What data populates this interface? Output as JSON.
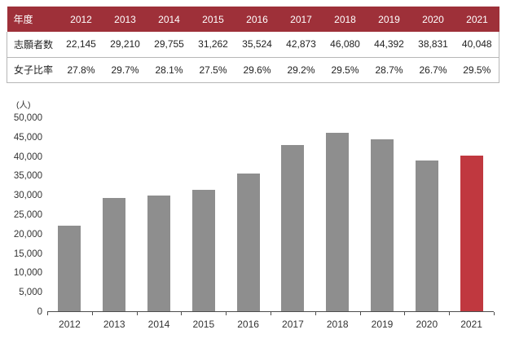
{
  "table": {
    "header": {
      "label": "年度",
      "years": [
        "2012",
        "2013",
        "2014",
        "2015",
        "2016",
        "2017",
        "2018",
        "2019",
        "2020",
        "2021"
      ]
    },
    "rows": [
      {
        "label": "志願者数",
        "values": [
          "22,145",
          "29,210",
          "29,755",
          "31,262",
          "35,524",
          "42,873",
          "46,080",
          "44,392",
          "38,831",
          "40,048"
        ]
      },
      {
        "label": "女子比率",
        "values": [
          "27.8%",
          "29.7%",
          "28.1%",
          "27.5%",
          "29.6%",
          "29.2%",
          "29.5%",
          "28.7%",
          "26.7%",
          "29.5%"
        ]
      }
    ]
  },
  "chart_data": {
    "type": "bar",
    "title": "",
    "unit_label": "(人)",
    "categories": [
      "2012",
      "2013",
      "2014",
      "2015",
      "2016",
      "2017",
      "2018",
      "2019",
      "2020",
      "2021"
    ],
    "values": [
      22145,
      29210,
      29755,
      31262,
      35524,
      42873,
      46080,
      44392,
      38831,
      40048
    ],
    "ylim": [
      0,
      50000
    ],
    "ytick_step": 5000,
    "ytick_labels": [
      "0",
      "5,000",
      "10,000",
      "15,000",
      "20,000",
      "25,000",
      "30,000",
      "35,000",
      "40,000",
      "45,000",
      "50,000"
    ],
    "grid": false,
    "legend": false,
    "bar_color": "#8e8e8e",
    "highlight_color": "#c0383f",
    "highlight_index": 9
  },
  "colors": {
    "header_bg": "#9e3039",
    "header_text": "#ffffff",
    "table_border": "#b7b7b7",
    "axis": "#4d4d4d"
  }
}
